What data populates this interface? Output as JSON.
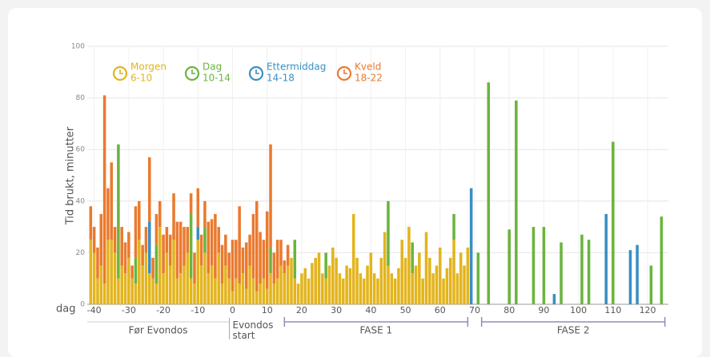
{
  "chart_data": {
    "type": "stacked_bar",
    "ylabel": "Tid brukt, minutter",
    "xlabel": "dag",
    "xlim": [
      -42,
      126
    ],
    "xticks": [
      -40,
      -30,
      -20,
      -10,
      0,
      10,
      20,
      30,
      40,
      50,
      60,
      70,
      80,
      90,
      100,
      110,
      120
    ],
    "ylim": [
      0,
      100
    ],
    "yticks": [
      0,
      20,
      40,
      60,
      80,
      100
    ],
    "grid": true,
    "annotations": [
      {
        "text": "Før Evondos",
        "from": -42,
        "to": -1
      },
      {
        "text": "Evondos start",
        "at": 0
      },
      {
        "text": "FASE 1",
        "from": 15,
        "to": 68
      },
      {
        "text": "FASE 2",
        "from": 72,
        "to": 125
      }
    ],
    "x": [
      -41,
      -40,
      -39,
      -38,
      -37,
      -36,
      -35,
      -34,
      -33,
      -32,
      -31,
      -30,
      -29,
      -28,
      -27,
      -26,
      -25,
      -24,
      -23,
      -22,
      -21,
      -20,
      -19,
      -18,
      -17,
      -16,
      -15,
      -14,
      -13,
      -12,
      -11,
      -10,
      -9,
      -8,
      -7,
      -6,
      -5,
      -4,
      -3,
      -2,
      -1,
      0,
      1,
      2,
      3,
      4,
      5,
      6,
      7,
      8,
      9,
      10,
      11,
      12,
      13,
      14,
      15,
      16,
      17,
      18,
      19,
      20,
      21,
      22,
      23,
      24,
      25,
      26,
      27,
      28,
      29,
      30,
      31,
      32,
      33,
      34,
      35,
      36,
      37,
      38,
      39,
      40,
      41,
      42,
      43,
      44,
      45,
      46,
      47,
      48,
      49,
      50,
      51,
      52,
      53,
      54,
      55,
      56,
      57,
      58,
      59,
      60,
      61,
      62,
      63,
      64,
      65,
      66,
      67,
      68,
      69,
      71,
      74,
      80,
      82,
      87,
      90,
      93,
      95,
      101,
      103,
      108,
      110,
      115,
      117,
      121,
      124
    ],
    "series": [
      {
        "name": "Morgen",
        "time": "6-10",
        "color": "#e3b41d",
        "values": [
          25,
          20,
          10,
          15,
          8,
          25,
          25,
          20,
          10,
          15,
          12,
          18,
          10,
          8,
          25,
          15,
          20,
          12,
          10,
          8,
          30,
          12,
          20,
          15,
          25,
          10,
          12,
          15,
          20,
          10,
          8,
          25,
          15,
          20,
          12,
          15,
          10,
          20,
          8,
          15,
          10,
          5,
          10,
          8,
          12,
          6,
          15,
          10,
          5,
          8,
          10,
          6,
          12,
          8,
          10,
          15,
          12,
          15,
          18,
          10,
          8,
          12,
          14,
          10,
          16,
          18,
          20,
          12,
          10,
          15,
          22,
          18,
          12,
          10,
          15,
          14,
          35,
          18,
          12,
          10,
          15,
          20,
          12,
          10,
          18,
          28,
          15,
          12,
          10,
          14,
          25,
          18,
          30,
          12,
          15,
          20,
          10,
          28,
          18,
          12,
          15,
          22,
          10,
          14,
          18,
          25,
          12,
          20,
          15,
          22,
          0,
          0,
          0,
          0,
          0,
          0,
          0,
          0,
          0,
          0,
          0,
          0,
          0,
          0,
          0,
          0,
          0
        ]
      },
      {
        "name": "Dag",
        "time": "10-14",
        "color": "#6ab43e",
        "values": [
          0,
          0,
          0,
          0,
          0,
          0,
          0,
          0,
          52,
          0,
          0,
          0,
          0,
          10,
          0,
          0,
          0,
          0,
          0,
          15,
          0,
          0,
          0,
          0,
          0,
          0,
          0,
          0,
          0,
          25,
          0,
          0,
          0,
          10,
          0,
          0,
          0,
          0,
          0,
          0,
          0,
          0,
          0,
          0,
          0,
          0,
          0,
          0,
          0,
          0,
          0,
          0,
          10,
          0,
          0,
          0,
          0,
          0,
          0,
          15,
          0,
          0,
          0,
          0,
          0,
          0,
          0,
          0,
          10,
          0,
          0,
          0,
          0,
          0,
          0,
          0,
          0,
          0,
          0,
          0,
          0,
          0,
          0,
          0,
          0,
          0,
          25,
          0,
          0,
          0,
          0,
          0,
          0,
          12,
          0,
          0,
          0,
          0,
          0,
          0,
          0,
          0,
          0,
          0,
          0,
          10,
          0,
          0,
          0,
          0,
          0,
          20,
          86,
          29,
          79,
          30,
          30,
          0,
          24,
          27,
          25,
          0,
          63,
          0,
          0,
          15,
          34
        ]
      },
      {
        "name": "Ettermiddag",
        "time": "14-18",
        "color": "#3a8fc2",
        "values": [
          0,
          0,
          0,
          0,
          0,
          0,
          0,
          0,
          0,
          0,
          0,
          0,
          0,
          0,
          0,
          0,
          0,
          20,
          0,
          0,
          0,
          0,
          0,
          0,
          0,
          0,
          0,
          0,
          0,
          0,
          0,
          5,
          0,
          0,
          0,
          0,
          0,
          0,
          0,
          0,
          0,
          0,
          0,
          0,
          0,
          0,
          0,
          0,
          0,
          0,
          0,
          0,
          0,
          0,
          0,
          0,
          0,
          0,
          0,
          0,
          0,
          0,
          0,
          0,
          0,
          0,
          0,
          0,
          0,
          0,
          0,
          0,
          0,
          0,
          0,
          0,
          0,
          0,
          0,
          0,
          0,
          0,
          0,
          0,
          0,
          0,
          0,
          0,
          0,
          0,
          0,
          0,
          0,
          0,
          0,
          0,
          0,
          0,
          0,
          0,
          0,
          0,
          0,
          0,
          0,
          0,
          0,
          0,
          0,
          0,
          45,
          0,
          0,
          0,
          0,
          0,
          0,
          4,
          0,
          0,
          0,
          35,
          0,
          21,
          23,
          0,
          0
        ]
      },
      {
        "name": "Kveld",
        "time": "18-22",
        "color": "#ea7a2e",
        "values": [
          13,
          10,
          12,
          20,
          73,
          20,
          30,
          10,
          0,
          15,
          12,
          10,
          5,
          20,
          15,
          8,
          10,
          25,
          8,
          12,
          10,
          15,
          10,
          12,
          18,
          22,
          20,
          15,
          10,
          8,
          12,
          15,
          12,
          10,
          20,
          18,
          25,
          10,
          15,
          12,
          10,
          20,
          15,
          30,
          10,
          18,
          12,
          25,
          35,
          20,
          15,
          30,
          40,
          12,
          15,
          10,
          5,
          8,
          0,
          0,
          0,
          0,
          0,
          0,
          0,
          0,
          0,
          0,
          0,
          0,
          0,
          0,
          0,
          0,
          0,
          0,
          0,
          0,
          0,
          0,
          0,
          0,
          0,
          0,
          0,
          0,
          0,
          0,
          0,
          0,
          0,
          0,
          0,
          0,
          0,
          0,
          0,
          0,
          0,
          0,
          0,
          0,
          0,
          0,
          0,
          0,
          0,
          0,
          0,
          0,
          0,
          0,
          0,
          0,
          0,
          0,
          0,
          0,
          0,
          0,
          0,
          0,
          0,
          0,
          0,
          0,
          0
        ]
      }
    ]
  }
}
